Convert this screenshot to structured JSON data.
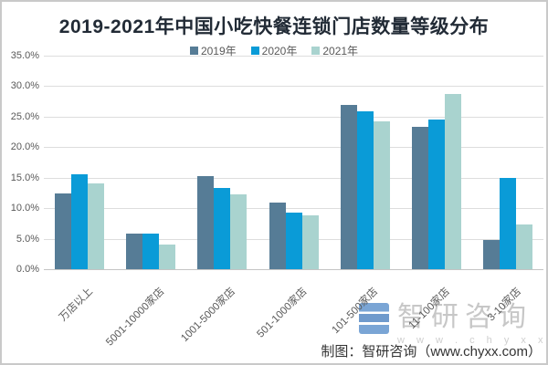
{
  "chart_data": {
    "type": "bar",
    "title": "2019-2021年中国小吃快餐连锁门店数量等级分布",
    "categories": [
      "万店以上",
      "5001-10000家店",
      "1001-5000家店",
      "501-1000家店",
      "101-500家店",
      "11-100家店",
      "3-10家店"
    ],
    "series": [
      {
        "name": "2019年",
        "color": "#567C96",
        "values": [
          12.4,
          5.9,
          15.2,
          10.9,
          26.9,
          23.4,
          4.8
        ]
      },
      {
        "name": "2020年",
        "color": "#0A9BD7",
        "values": [
          15.6,
          5.8,
          13.3,
          9.3,
          25.9,
          24.6,
          15.0
        ]
      },
      {
        "name": "2021年",
        "color": "#A9D3CF",
        "values": [
          14.1,
          4.0,
          12.2,
          8.8,
          24.2,
          28.7,
          7.3
        ]
      }
    ],
    "ylim": [
      0,
      35
    ],
    "ytick_step": 5,
    "ytick_labels": [
      "35.0%",
      "30.0%",
      "25.0%",
      "20.0%",
      "15.0%",
      "10.0%",
      "5.0%",
      "0.0%"
    ],
    "grid": true,
    "legend_position": "top",
    "xlabel": "",
    "ylabel": ""
  },
  "watermark": {
    "brand": "智研咨询",
    "url": "www.chyxx.com"
  },
  "footer": {
    "credit": "制图：智研咨询（www.chyxx.com）"
  }
}
